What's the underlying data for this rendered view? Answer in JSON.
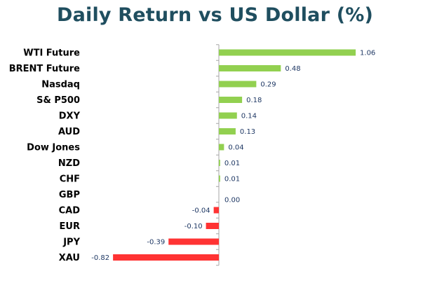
{
  "chart_data": {
    "type": "bar",
    "orientation": "horizontal",
    "title": "Daily Return vs US Dollar (%)",
    "xlabel": "",
    "ylabel": "",
    "categories": [
      "WTI Future",
      "BRENT Future",
      "Nasdaq",
      "S& P500",
      "DXY",
      "AUD",
      "Dow Jones",
      "NZD",
      "CHF",
      "GBP",
      "CAD",
      "EUR",
      "JPY",
      "XAU"
    ],
    "values": [
      1.06,
      0.48,
      0.29,
      0.18,
      0.14,
      0.13,
      0.04,
      0.01,
      0.01,
      0.0,
      -0.04,
      -0.1,
      -0.39,
      -0.82
    ],
    "value_labels": [
      "1.06",
      "0.48",
      "0.29",
      "0.18",
      "0.14",
      "0.13",
      "0.04",
      "0.01",
      "0.01",
      "0.00",
      "-0.04",
      "-0.10",
      "-0.39",
      "-0.82"
    ],
    "xlim": [
      -0.82,
      1.06
    ],
    "grid": false,
    "legend": "none",
    "colors": {
      "positive": "#92d050",
      "negative": "#ff3333",
      "axis": "#a6a6a6",
      "title": "#1f4e5f",
      "value_label": "#1f3864",
      "category_label": "#000000"
    }
  }
}
